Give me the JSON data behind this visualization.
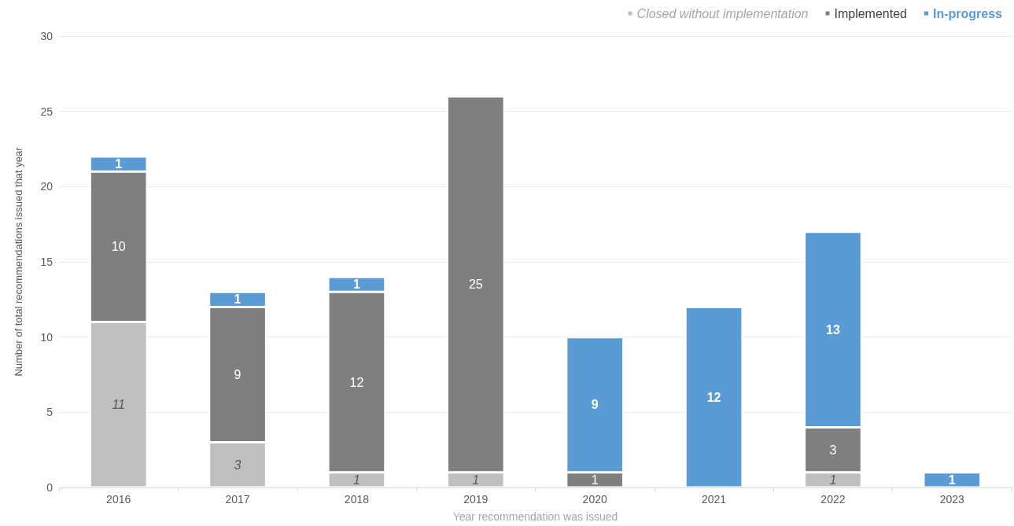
{
  "chart_data": {
    "type": "bar",
    "stacked": true,
    "xlabel": "Year recommendation was issued",
    "ylabel": "Number of total recommendations issued that year",
    "categories": [
      "2016",
      "2017",
      "2018",
      "2019",
      "2020",
      "2021",
      "2022",
      "2023"
    ],
    "series": [
      {
        "name": "Closed without implementation",
        "color": "#bfbfbf",
        "values": [
          11,
          3,
          1,
          1,
          null,
          null,
          1,
          null
        ]
      },
      {
        "name": "Implemented",
        "color": "#7f7f7f",
        "values": [
          10,
          9,
          12,
          25,
          1,
          null,
          3,
          null
        ]
      },
      {
        "name": "In-progress",
        "color": "#5b9bd5",
        "values": [
          1,
          1,
          1,
          null,
          9,
          12,
          13,
          1
        ]
      }
    ],
    "ylim": [
      0,
      30
    ],
    "yticks": [
      0,
      5,
      10,
      15,
      20,
      25,
      30
    ],
    "grid": "y",
    "legend": "top right",
    "data_labels": true
  }
}
